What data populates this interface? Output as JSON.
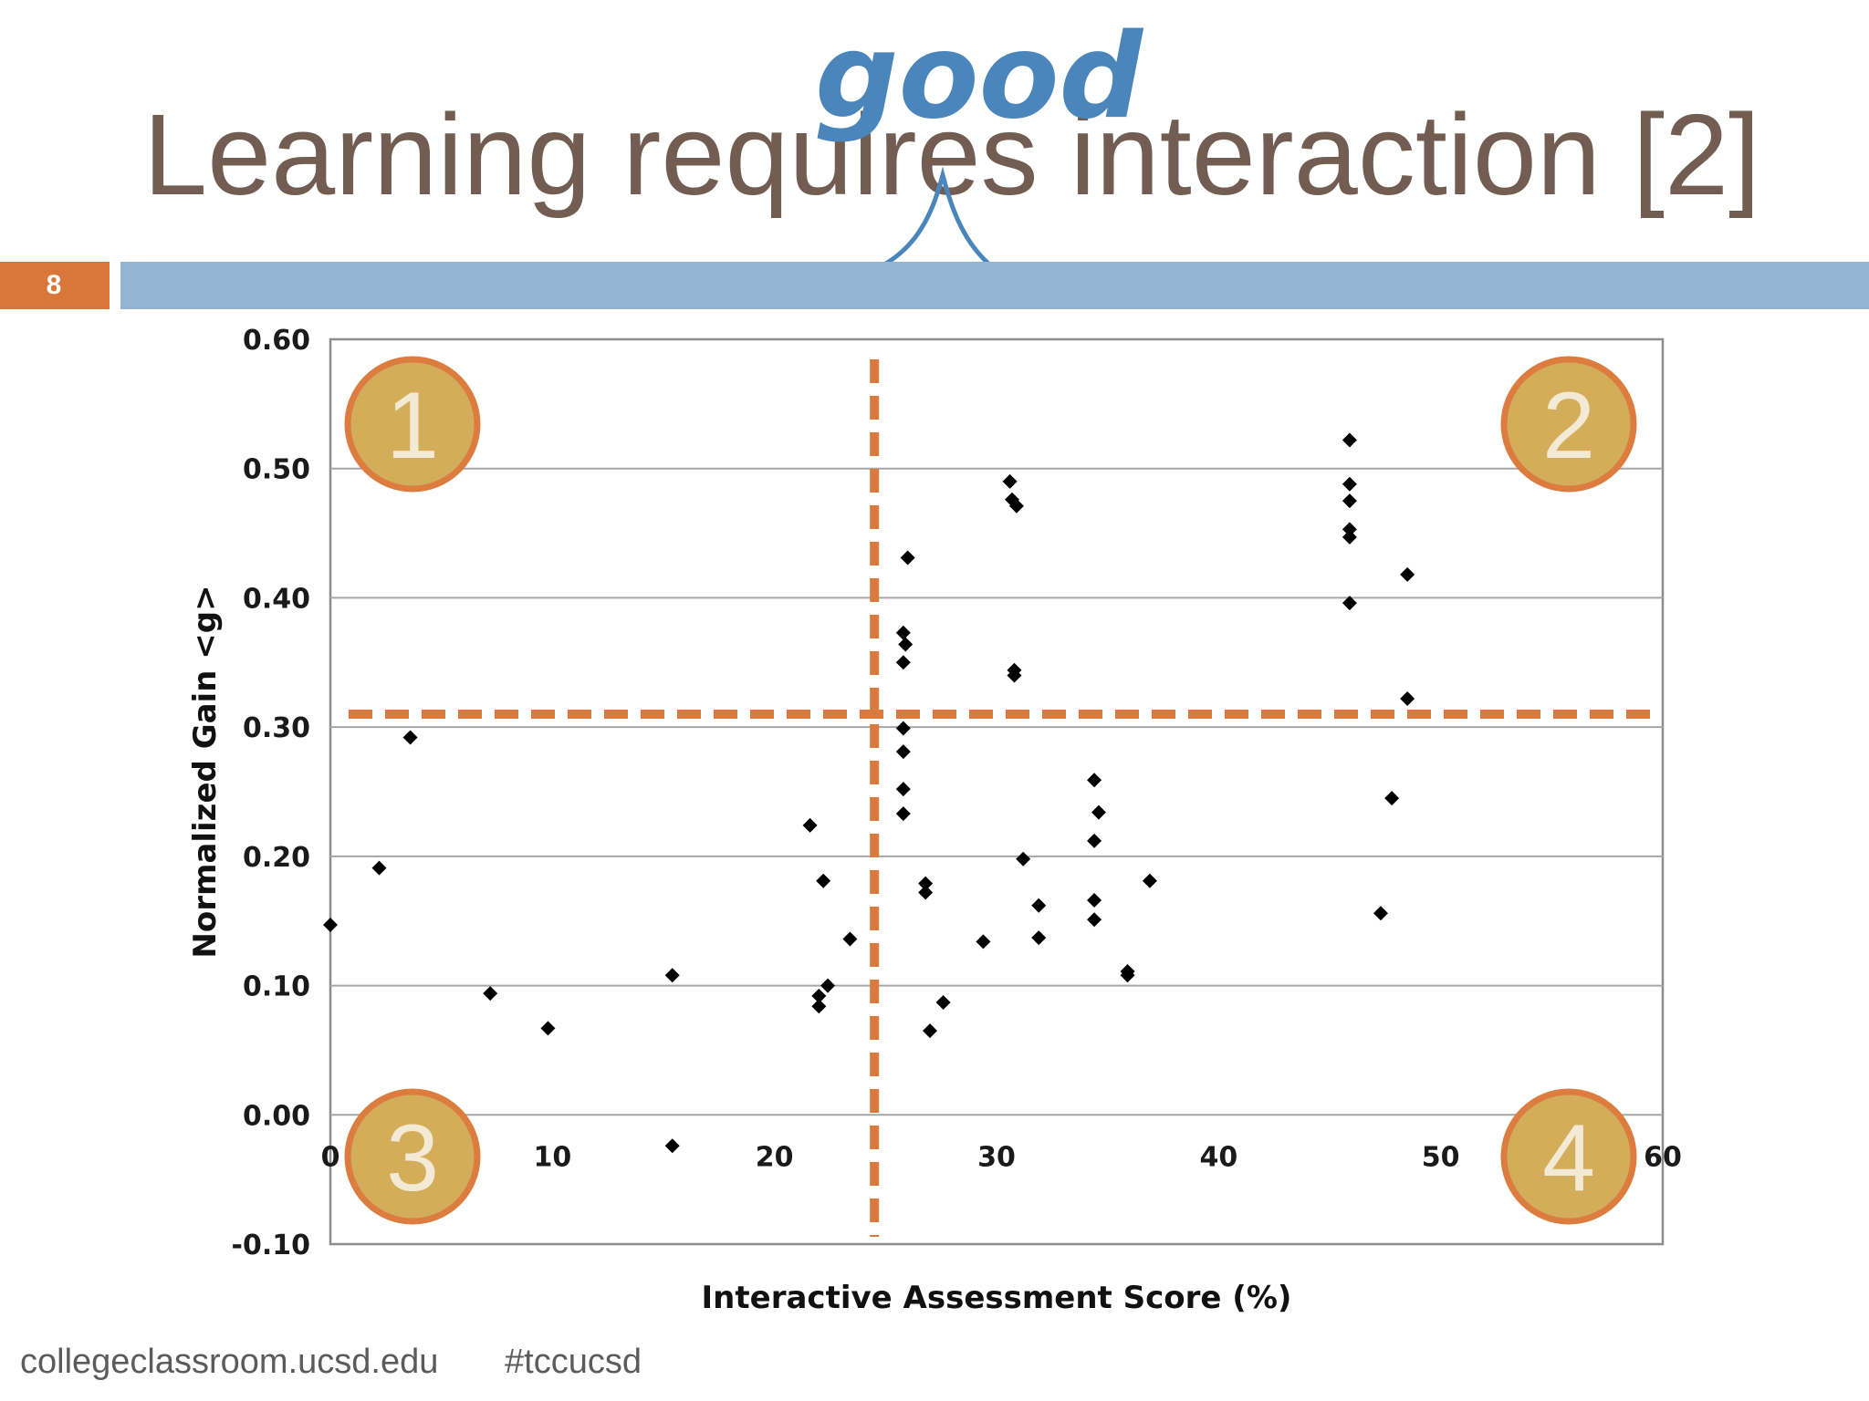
{
  "slide": {
    "title": "Learning requires interaction [2]",
    "annotation": "good",
    "slide_number": "8",
    "footer_site": "collegeclassroom.ucsd.edu",
    "footer_tag": "#tccucsd"
  },
  "colors": {
    "title": "#735c52",
    "annotation": "#4a86bc",
    "header_bar": "#93b4d2",
    "slide_number_box": "#d9773b",
    "dashed_divider": "#db7a3e",
    "badge_fill": "#d4ad5a",
    "badge_border": "#dc7d3f",
    "marker": "#000000",
    "gridline": "#a6a6a6"
  },
  "chart_data": {
    "type": "scatter",
    "title": "",
    "xlabel": "Interactive Assessment Score (%)",
    "ylabel": "Normalized Gain <g>",
    "xlim": [
      0,
      60
    ],
    "ylim": [
      -0.1,
      0.6
    ],
    "xticks": [
      "0",
      "10",
      "20",
      "30",
      "40",
      "50",
      "60"
    ],
    "yticks": [
      "-0.10",
      "0.00",
      "0.10",
      "0.20",
      "0.30",
      "0.40",
      "0.50",
      "0.60"
    ],
    "grid": "horizontal",
    "legend": "none",
    "dividers": {
      "x": 24.5,
      "y": 0.31
    },
    "quadrant_labels": [
      {
        "label": "1",
        "corner": "top-left"
      },
      {
        "label": "2",
        "corner": "top-right"
      },
      {
        "label": "3",
        "corner": "bottom-left"
      },
      {
        "label": "4",
        "corner": "bottom-right"
      }
    ],
    "points": [
      [
        0.0,
        0.147
      ],
      [
        2.2,
        0.191
      ],
      [
        3.6,
        0.292
      ],
      [
        7.2,
        0.094
      ],
      [
        9.8,
        0.067
      ],
      [
        15.4,
        0.108
      ],
      [
        15.4,
        -0.024
      ],
      [
        21.6,
        0.224
      ],
      [
        22.0,
        0.092
      ],
      [
        22.0,
        0.084
      ],
      [
        22.2,
        0.181
      ],
      [
        22.4,
        0.1
      ],
      [
        23.4,
        0.136
      ],
      [
        26.0,
        0.431
      ],
      [
        25.8,
        0.373
      ],
      [
        25.9,
        0.364
      ],
      [
        25.8,
        0.35
      ],
      [
        25.8,
        0.299
      ],
      [
        25.8,
        0.281
      ],
      [
        25.8,
        0.252
      ],
      [
        25.8,
        0.233
      ],
      [
        26.8,
        0.179
      ],
      [
        26.8,
        0.172
      ],
      [
        27.0,
        0.065
      ],
      [
        27.6,
        0.087
      ],
      [
        29.4,
        0.134
      ],
      [
        30.6,
        0.49
      ],
      [
        30.7,
        0.476
      ],
      [
        30.9,
        0.471
      ],
      [
        30.8,
        0.344
      ],
      [
        30.8,
        0.34
      ],
      [
        31.2,
        0.198
      ],
      [
        31.9,
        0.162
      ],
      [
        31.9,
        0.137
      ],
      [
        34.4,
        0.259
      ],
      [
        34.6,
        0.234
      ],
      [
        34.4,
        0.212
      ],
      [
        34.4,
        0.166
      ],
      [
        34.4,
        0.151
      ],
      [
        35.9,
        0.111
      ],
      [
        35.9,
        0.108
      ],
      [
        36.9,
        0.181
      ],
      [
        45.9,
        0.522
      ],
      [
        45.9,
        0.488
      ],
      [
        45.9,
        0.475
      ],
      [
        45.9,
        0.453
      ],
      [
        45.9,
        0.447
      ],
      [
        45.9,
        0.396
      ],
      [
        48.5,
        0.418
      ],
      [
        48.5,
        0.322
      ],
      [
        47.8,
        0.245
      ],
      [
        47.3,
        0.156
      ]
    ]
  }
}
